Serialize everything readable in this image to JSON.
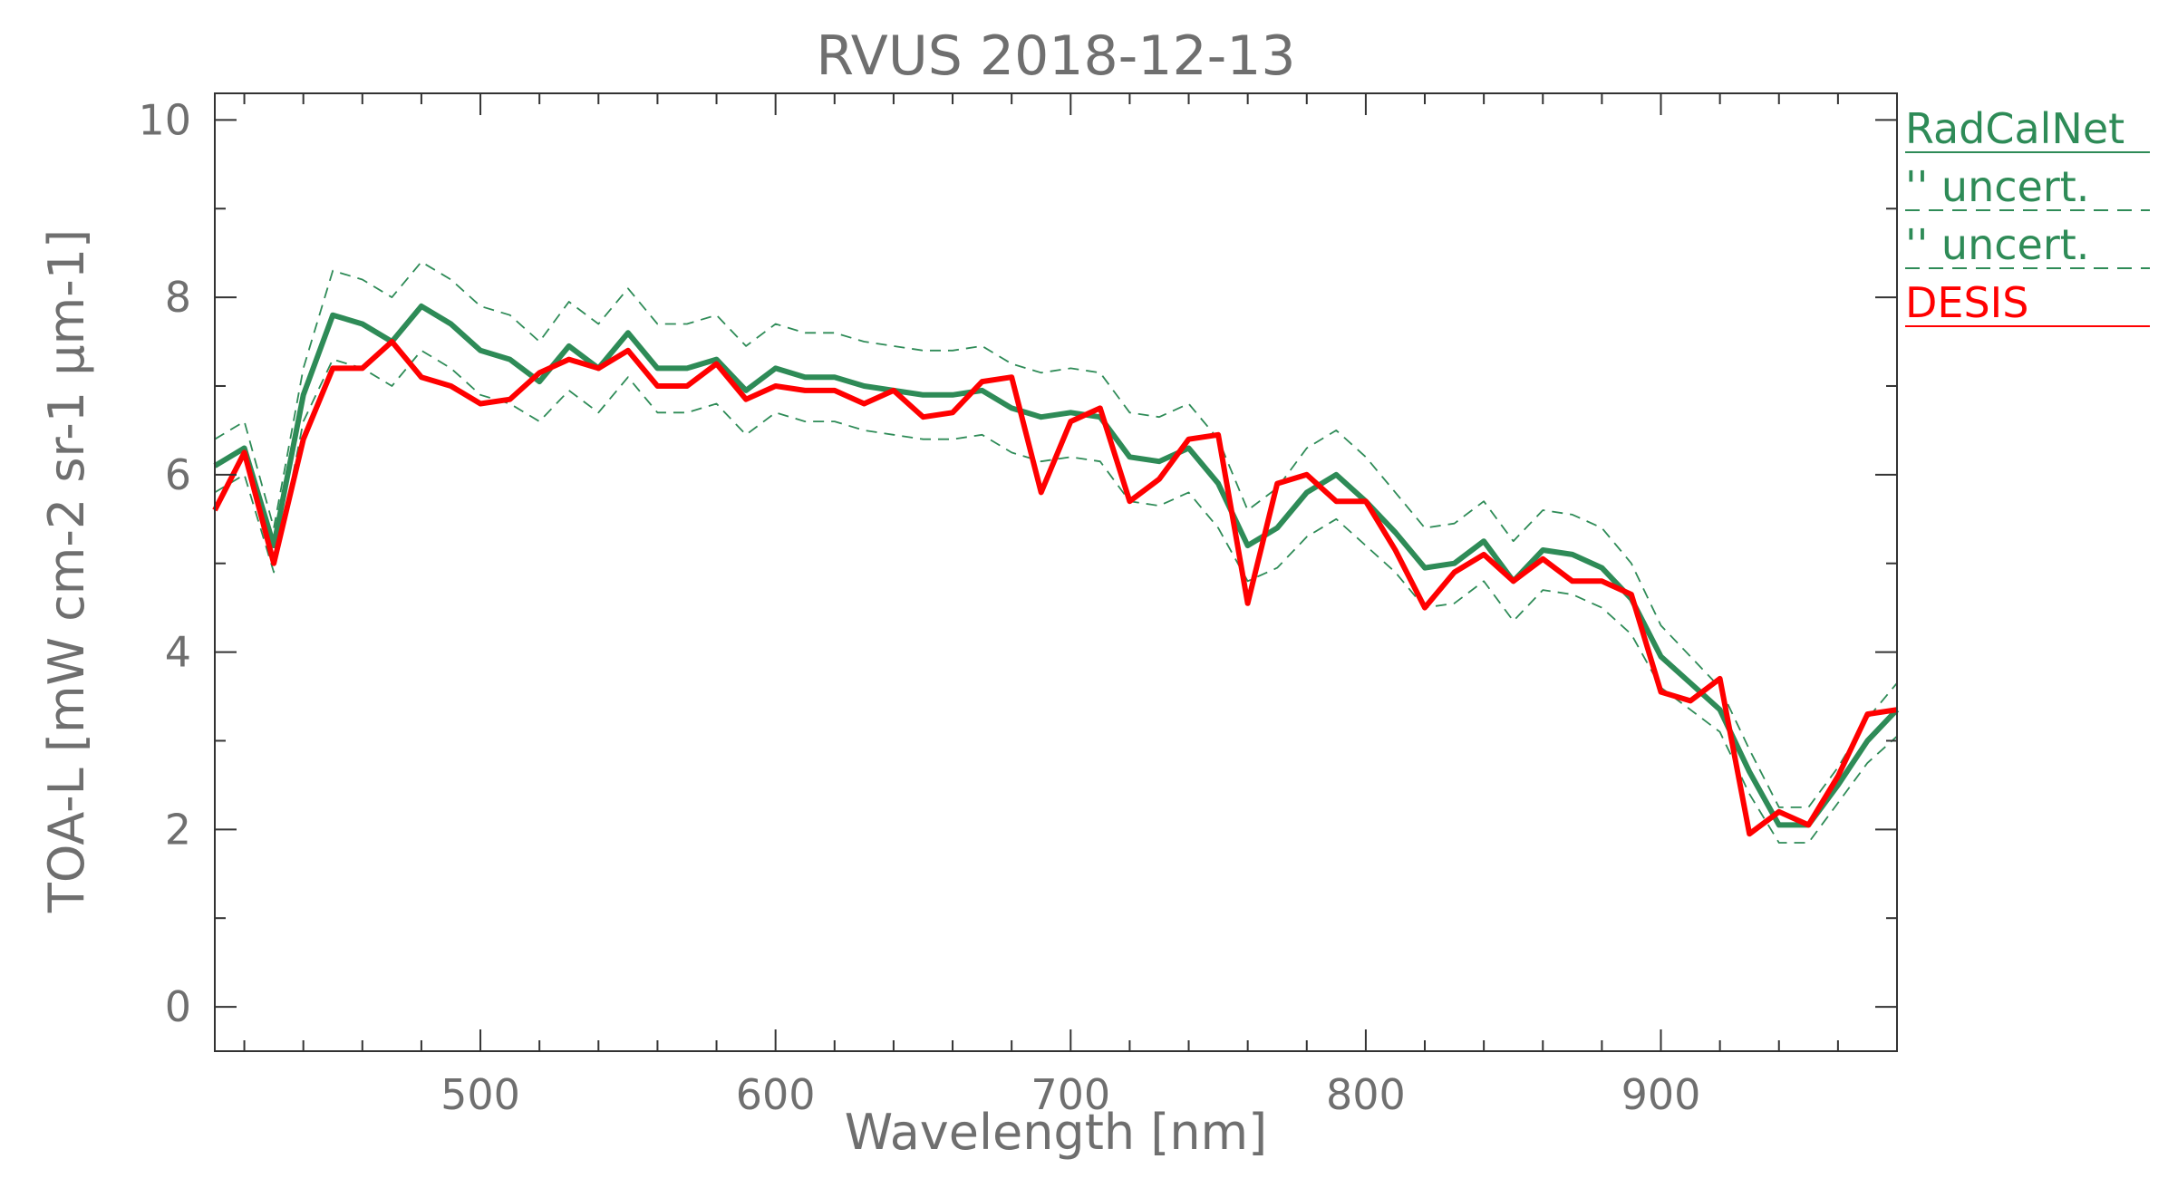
{
  "chart_data": {
    "type": "line",
    "title": "RVUS 2018-12-13",
    "xlabel": "Wavelength [nm]",
    "ylabel": "TOA-L [mW cm-2 sr-1 μm-1]",
    "xlim": [
      410,
      980
    ],
    "ylim": [
      -0.5,
      10.3
    ],
    "xticks": [
      500,
      600,
      700,
      800,
      900
    ],
    "yticks": [
      0,
      2,
      4,
      6,
      8,
      10
    ],
    "x": [
      410,
      420,
      430,
      440,
      450,
      460,
      470,
      480,
      490,
      500,
      510,
      520,
      530,
      540,
      550,
      560,
      570,
      580,
      590,
      600,
      610,
      620,
      630,
      640,
      650,
      660,
      670,
      680,
      690,
      700,
      710,
      720,
      730,
      740,
      750,
      760,
      770,
      780,
      790,
      800,
      810,
      820,
      830,
      840,
      850,
      860,
      870,
      880,
      890,
      900,
      910,
      920,
      930,
      940,
      950,
      960,
      970,
      980
    ],
    "series": [
      {
        "name": "RadCalNet",
        "color": "#2e8b57",
        "style": "solid",
        "values": [
          6.1,
          6.3,
          5.2,
          6.9,
          7.8,
          7.7,
          7.5,
          7.9,
          7.7,
          7.4,
          7.3,
          7.05,
          7.45,
          7.2,
          7.6,
          7.2,
          7.2,
          7.3,
          6.95,
          7.2,
          7.1,
          7.1,
          7.0,
          6.95,
          6.9,
          6.9,
          6.95,
          6.75,
          6.65,
          6.7,
          6.65,
          6.2,
          6.15,
          6.3,
          5.9,
          5.2,
          5.4,
          5.8,
          6.0,
          5.7,
          5.35,
          4.95,
          5.0,
          5.25,
          4.8,
          5.15,
          5.1,
          4.95,
          4.6,
          3.95,
          3.65,
          3.35,
          2.65,
          2.05,
          2.05,
          2.5,
          3.0,
          3.35
        ]
      },
      {
        "name": "'' uncert.",
        "color": "#2e8b57",
        "style": "dashed",
        "values": [
          6.4,
          6.6,
          5.4,
          7.2,
          8.3,
          8.2,
          8.0,
          8.4,
          8.2,
          7.9,
          7.8,
          7.5,
          7.95,
          7.7,
          8.1,
          7.7,
          7.7,
          7.8,
          7.45,
          7.7,
          7.6,
          7.6,
          7.5,
          7.45,
          7.4,
          7.4,
          7.45,
          7.25,
          7.15,
          7.2,
          7.15,
          6.7,
          6.65,
          6.8,
          6.4,
          5.6,
          5.85,
          6.3,
          6.5,
          6.2,
          5.8,
          5.4,
          5.45,
          5.7,
          5.25,
          5.6,
          5.55,
          5.4,
          5.0,
          4.3,
          3.95,
          3.6,
          2.9,
          2.25,
          2.25,
          2.7,
          3.25,
          3.65
        ]
      },
      {
        "name": "'' uncert.",
        "color": "#2e8b57",
        "style": "dashed",
        "values": [
          5.8,
          6.0,
          4.9,
          6.6,
          7.3,
          7.2,
          7.0,
          7.4,
          7.2,
          6.9,
          6.8,
          6.6,
          6.95,
          6.7,
          7.1,
          6.7,
          6.7,
          6.8,
          6.45,
          6.7,
          6.6,
          6.6,
          6.5,
          6.45,
          6.4,
          6.4,
          6.45,
          6.25,
          6.15,
          6.2,
          6.15,
          5.7,
          5.65,
          5.8,
          5.4,
          4.8,
          4.95,
          5.3,
          5.5,
          5.2,
          4.9,
          4.5,
          4.55,
          4.8,
          4.35,
          4.7,
          4.65,
          4.5,
          4.2,
          3.6,
          3.35,
          3.1,
          2.4,
          1.85,
          1.85,
          2.3,
          2.75,
          3.05
        ]
      },
      {
        "name": "DESIS",
        "color": "#ff0000",
        "style": "solid",
        "values": [
          5.6,
          6.25,
          5.0,
          6.4,
          7.2,
          7.2,
          7.5,
          7.1,
          7.0,
          6.8,
          6.85,
          7.15,
          7.3,
          7.2,
          7.4,
          7.0,
          7.0,
          7.25,
          6.85,
          7.0,
          6.95,
          6.95,
          6.8,
          6.95,
          6.65,
          6.7,
          7.05,
          7.1,
          5.8,
          6.6,
          6.75,
          5.7,
          5.95,
          6.4,
          6.45,
          4.55,
          5.9,
          6.0,
          5.7,
          5.7,
          5.15,
          4.5,
          4.9,
          5.1,
          4.8,
          5.05,
          4.8,
          4.8,
          4.65,
          3.55,
          3.45,
          3.7,
          1.95,
          2.2,
          2.05,
          2.6,
          3.3,
          3.35
        ]
      }
    ],
    "legend_position": "right-outside-top",
    "grid": false
  }
}
